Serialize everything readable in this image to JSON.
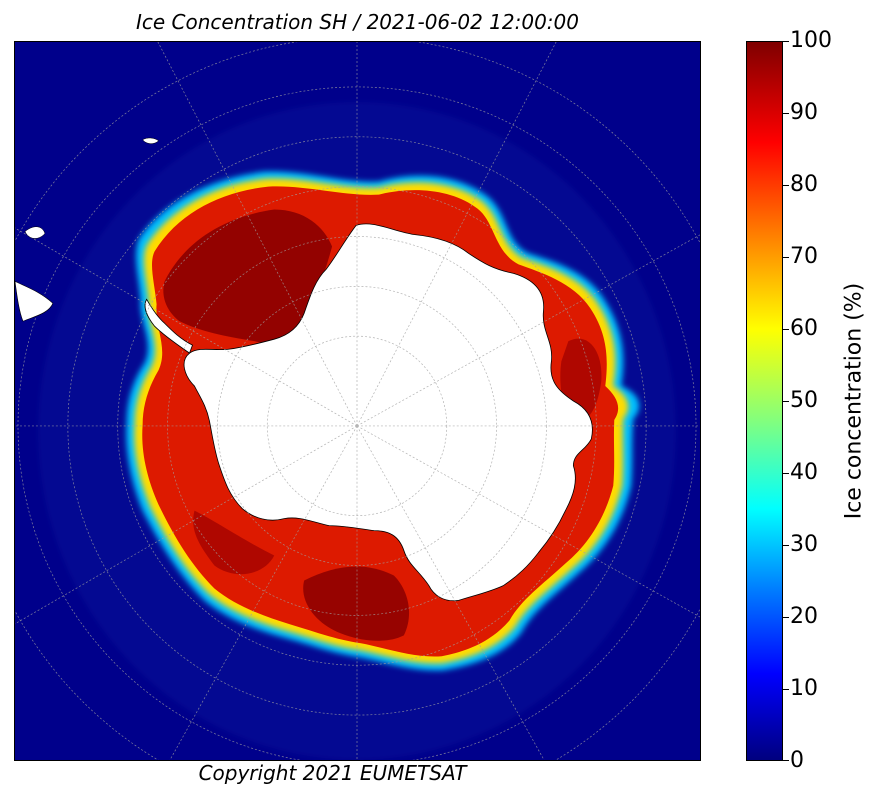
{
  "title": "Ice Concentration SH / 2021-06-02 12:00:00",
  "copyright": "Copyright 2021 EUMETSAT",
  "colorbar": {
    "label": "Ice concentration (%)",
    "ticks": [
      "100",
      "90",
      "80",
      "70",
      "60",
      "50",
      "40",
      "30",
      "20",
      "10",
      "0"
    ],
    "range": [
      0,
      100
    ],
    "colormap": "jet"
  },
  "map": {
    "projection": "south polar stereographic",
    "grid": true,
    "colors": {
      "ocean": "#00008b",
      "land": "#ffffff",
      "sea_ice_core": "#8b0000",
      "sea_ice": "#dd1a00",
      "ice_edge_outer": "#00bfff",
      "ice_edge_mid": "#ffff00",
      "grid": "#a0a0a0"
    }
  }
}
